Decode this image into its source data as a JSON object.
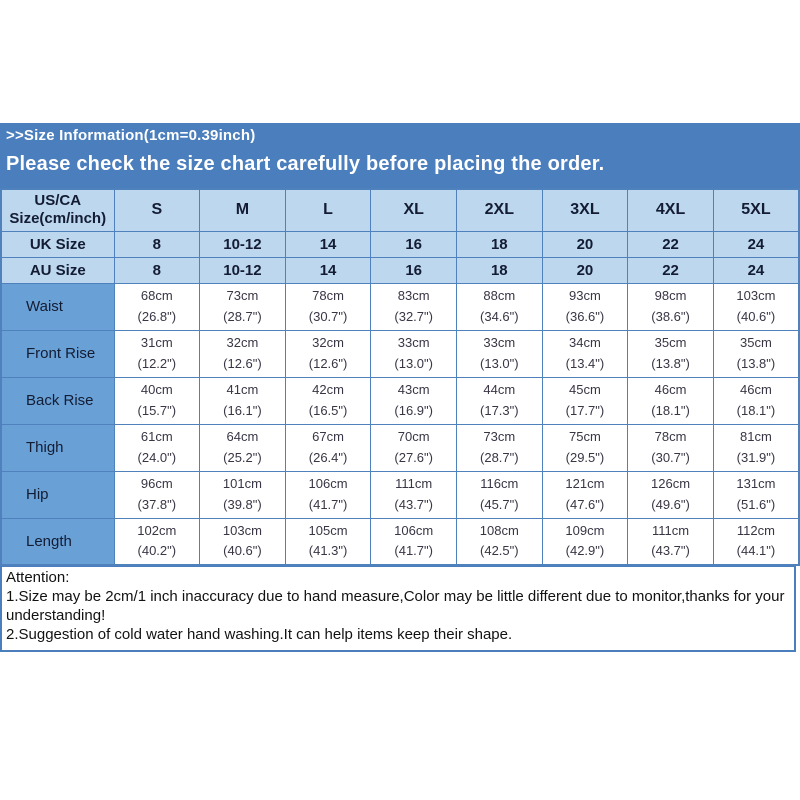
{
  "banner": {
    "line1": ">>Size Information(1cm=0.39inch)",
    "line2": "Please check the size chart carefully before placing the order."
  },
  "colors": {
    "banner_blue": "#4a7ebc",
    "border_blue": "#4f81bd",
    "light_blue": "#bdd7ee",
    "label_blue": "#69a1d7",
    "header_text": "#131c33",
    "value_text": "#3a3544"
  },
  "table": {
    "corner_header": "US/CA\nSize(cm/inch)",
    "size_columns": [
      "S",
      "M",
      "L",
      "XL",
      "2XL",
      "3XL",
      "4XL",
      "5XL"
    ],
    "size_rows": [
      {
        "label": "UK Size",
        "values": [
          "8",
          "10-12",
          "14",
          "16",
          "18",
          "20",
          "22",
          "24"
        ]
      },
      {
        "label": "AU Size",
        "values": [
          "8",
          "10-12",
          "14",
          "16",
          "18",
          "20",
          "22",
          "24"
        ]
      }
    ],
    "measurement_rows": [
      {
        "label": "Waist",
        "values": [
          "68cm\n(26.8\")",
          "73cm\n(28.7\")",
          "78cm\n(30.7\")",
          "83cm\n(32.7\")",
          "88cm\n(34.6\")",
          "93cm\n(36.6\")",
          "98cm\n(38.6\")",
          "103cm\n(40.6\")"
        ]
      },
      {
        "label": "Front Rise",
        "values": [
          "31cm\n(12.2\")",
          "32cm\n(12.6\")",
          "32cm\n(12.6\")",
          "33cm\n(13.0\")",
          "33cm\n(13.0\")",
          "34cm\n(13.4\")",
          "35cm\n(13.8\")",
          "35cm\n(13.8\")"
        ]
      },
      {
        "label": "Back Rise",
        "values": [
          "40cm\n(15.7\")",
          "41cm\n(16.1\")",
          "42cm\n(16.5\")",
          "43cm\n(16.9\")",
          "44cm\n(17.3\")",
          "45cm\n(17.7\")",
          "46cm\n(18.1\")",
          "46cm\n(18.1\")"
        ]
      },
      {
        "label": "Thigh",
        "values": [
          "61cm\n(24.0\")",
          "64cm\n(25.2\")",
          "67cm\n(26.4\")",
          "70cm\n(27.6\")",
          "73cm\n(28.7\")",
          "75cm\n(29.5\")",
          "78cm\n(30.7\")",
          "81cm\n(31.9\")"
        ]
      },
      {
        "label": "Hip",
        "values": [
          "96cm\n(37.8\")",
          "101cm\n(39.8\")",
          "106cm\n(41.7\")",
          "111cm\n(43.7\")",
          "116cm\n(45.7\")",
          "121cm\n(47.6\")",
          "126cm\n(49.6\")",
          "131cm\n(51.6\")"
        ]
      },
      {
        "label": "Length",
        "values": [
          "102cm\n(40.2\")",
          "103cm\n(40.6\")",
          "105cm\n(41.3\")",
          "106cm\n(41.7\")",
          "108cm\n(42.5\")",
          "109cm\n(42.9\")",
          "111cm\n(43.7\")",
          "112cm\n(44.1\")"
        ]
      }
    ]
  },
  "attention": {
    "title": "Attention:",
    "line1": "1.Size may be 2cm/1 inch inaccuracy due to hand measure,Color may be little different due to monitor,thanks for your understanding!",
    "line2": "2.Suggestion of cold water hand washing.It can help items keep their shape."
  }
}
